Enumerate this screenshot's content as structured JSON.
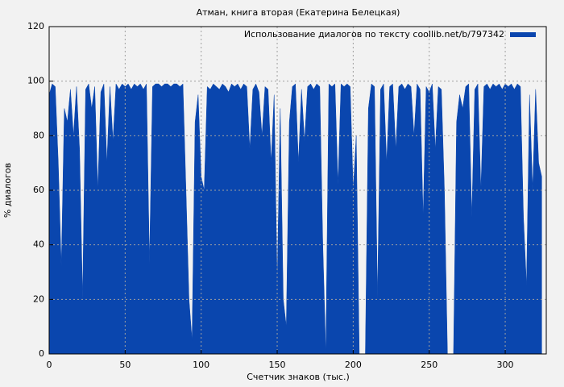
{
  "chart_data": {
    "type": "area",
    "title": "Атман, книга вторая (Екатерина Белецкая)",
    "xlabel": "Счетчик знаков (тыс.)",
    "ylabel": "% диалогов",
    "x": [
      0,
      2,
      4,
      6,
      8,
      10,
      12,
      14,
      16,
      18,
      20,
      22,
      24,
      26,
      28,
      30,
      32,
      34,
      36,
      38,
      40,
      42,
      44,
      46,
      48,
      50,
      52,
      54,
      56,
      58,
      60,
      62,
      64,
      66,
      68,
      70,
      72,
      74,
      76,
      78,
      80,
      82,
      84,
      86,
      88,
      90,
      92,
      94,
      96,
      98,
      100,
      102,
      104,
      106,
      108,
      110,
      112,
      114,
      116,
      118,
      120,
      122,
      124,
      126,
      128,
      130,
      132,
      134,
      136,
      138,
      140,
      142,
      144,
      146,
      148,
      150,
      152,
      154,
      156,
      158,
      160,
      162,
      164,
      166,
      168,
      170,
      172,
      174,
      176,
      178,
      180,
      182,
      184,
      186,
      188,
      190,
      192,
      194,
      196,
      198,
      200,
      202,
      204,
      206,
      208,
      210,
      212,
      214,
      216,
      218,
      220,
      222,
      224,
      226,
      228,
      230,
      232,
      234,
      236,
      238,
      240,
      242,
      244,
      246,
      248,
      250,
      252,
      254,
      256,
      258,
      260,
      262,
      264,
      266,
      268,
      270,
      272,
      274,
      276,
      278,
      280,
      282,
      284,
      286,
      288,
      290,
      292,
      294,
      296,
      298,
      300,
      302,
      304,
      306,
      308,
      310,
      312,
      314,
      316,
      318,
      320,
      322,
      324
    ],
    "series": [
      {
        "name": "Использование диалогов по тексту coollib.net/b/797342",
        "color": "#0a46ae",
        "values": [
          95,
          99,
          98,
          70,
          32,
          90,
          85,
          97,
          80,
          98,
          75,
          20,
          97,
          99,
          90,
          98,
          60,
          96,
          99,
          70,
          98,
          78,
          99,
          97,
          99,
          98,
          99,
          97,
          99,
          98,
          99,
          97,
          99,
          33,
          98,
          99,
          99,
          98,
          99,
          99,
          98,
          99,
          99,
          98,
          99,
          60,
          20,
          5,
          85,
          95,
          65,
          60,
          98,
          97,
          99,
          98,
          97,
          99,
          98,
          96,
          99,
          98,
          99,
          97,
          99,
          98,
          75,
          97,
          99,
          96,
          80,
          98,
          97,
          70,
          95,
          25,
          90,
          20,
          10,
          85,
          98,
          99,
          70,
          97,
          78,
          98,
          99,
          97,
          99,
          98,
          40,
          0,
          99,
          98,
          99,
          62,
          99,
          98,
          99,
          98,
          60,
          80,
          0,
          0,
          0,
          90,
          99,
          98,
          20,
          97,
          99,
          70,
          98,
          99,
          75,
          98,
          99,
          97,
          99,
          98,
          80,
          99,
          97,
          50,
          98,
          96,
          99,
          75,
          98,
          97,
          60,
          0,
          0,
          0,
          85,
          95,
          90,
          98,
          99,
          50,
          97,
          99,
          60,
          98,
          99,
          97,
          99,
          98,
          99,
          97,
          99,
          98,
          99,
          97,
          99,
          98,
          50,
          25,
          95,
          60,
          97,
          70,
          65
        ]
      }
    ],
    "xlim": [
      0,
      327
    ],
    "ylim": [
      0,
      120
    ],
    "xticks": [
      0,
      50,
      100,
      150,
      200,
      250,
      300
    ],
    "yticks": [
      0,
      20,
      40,
      60,
      80,
      100,
      120
    ],
    "grid": true,
    "legend": "top-right"
  }
}
